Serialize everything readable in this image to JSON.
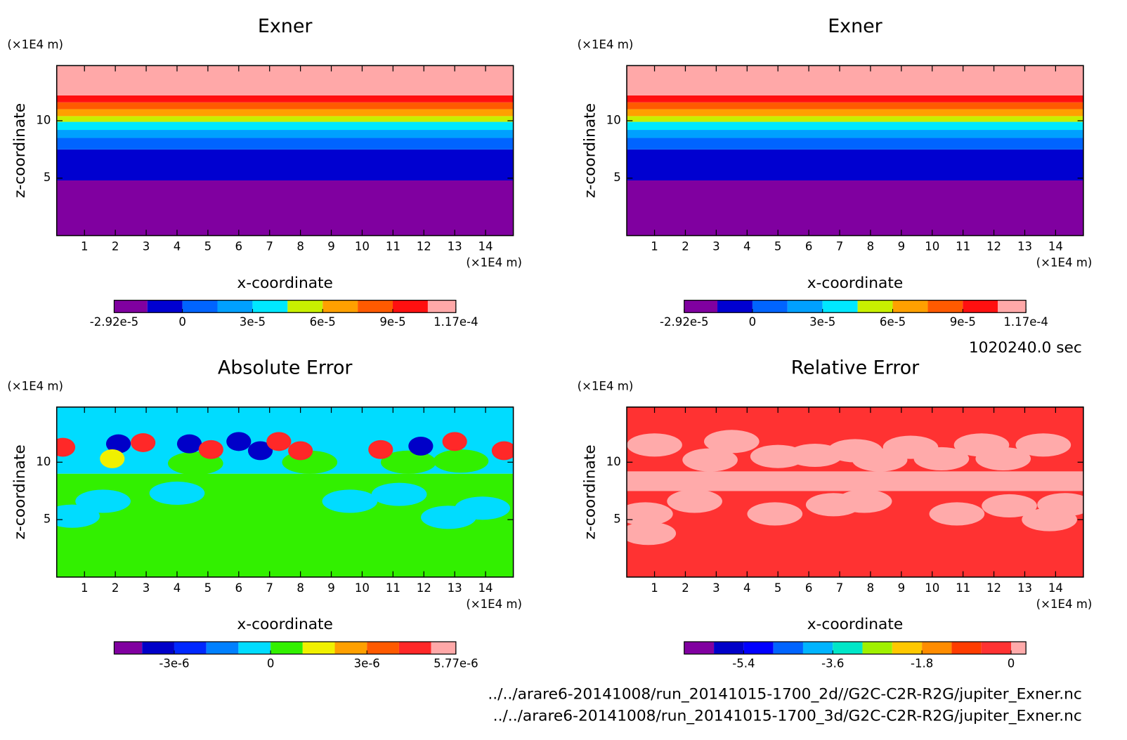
{
  "chart_data": [
    {
      "type": "contour",
      "title": "Exner",
      "xlabel": "x-coordinate",
      "ylabel": "z-coordinate",
      "xunit": "(×1E4 m)",
      "yunit": "(×1E4 m)",
      "xlim": [
        0.1,
        14.9
      ],
      "ylim": [
        0,
        14.8
      ],
      "xticks": [
        1,
        2,
        3,
        4,
        5,
        6,
        7,
        8,
        9,
        10,
        11,
        12,
        13,
        14
      ],
      "yticks": [
        5,
        10
      ],
      "bands": [
        {
          "bottom": 0,
          "color": "#8000a0"
        },
        {
          "bottom": 4.8,
          "color": "#0000d0"
        },
        {
          "bottom": 7.5,
          "color": "#0064ff"
        },
        {
          "bottom": 8.5,
          "color": "#00a0ff"
        },
        {
          "bottom": 9.2,
          "color": "#00e8ff"
        },
        {
          "bottom": 9.9,
          "color": "#c8f000"
        },
        {
          "bottom": 10.4,
          "color": "#ffa000"
        },
        {
          "bottom": 11.0,
          "color": "#ff5a00"
        },
        {
          "bottom": 11.6,
          "color": "#ff1010"
        },
        {
          "bottom": 12.2,
          "color": "#ffa8a8"
        }
      ],
      "colorbar": {
        "levels": [
          -2.92e-05,
          -1.5e-05,
          0,
          1.5e-05,
          3e-05,
          4.5e-05,
          6e-05,
          7.5e-05,
          9e-05,
          0.000105,
          0.000117
        ],
        "colors": [
          "#8000a0",
          "#0000d0",
          "#0064ff",
          "#00a0ff",
          "#00e8ff",
          "#c8f000",
          "#ffa000",
          "#ff5a00",
          "#ff1010",
          "#ffa8a8"
        ],
        "ticks": [
          {
            "value": -2.92e-05,
            "label": "-2.92e-5"
          },
          0,
          {
            "value": 3e-05,
            "label": "3e-5"
          },
          {
            "value": 6e-05,
            "label": "6e-5"
          },
          {
            "value": 9e-05,
            "label": "9e-5"
          },
          {
            "value": 0.000117,
            "label": "1.17e-4"
          }
        ]
      }
    },
    {
      "type": "contour",
      "title": "Exner",
      "xlabel": "x-coordinate",
      "ylabel": "z-coordinate",
      "xunit": "(×1E4 m)",
      "yunit": "(×1E4 m)",
      "xlim": [
        0.1,
        14.9
      ],
      "ylim": [
        0,
        14.8
      ],
      "xticks": [
        1,
        2,
        3,
        4,
        5,
        6,
        7,
        8,
        9,
        10,
        11,
        12,
        13,
        14
      ],
      "yticks": [
        5,
        10
      ],
      "bands": [
        {
          "bottom": 0,
          "color": "#8000a0"
        },
        {
          "bottom": 4.8,
          "color": "#0000d0"
        },
        {
          "bottom": 7.5,
          "color": "#0064ff"
        },
        {
          "bottom": 8.5,
          "color": "#00a0ff"
        },
        {
          "bottom": 9.2,
          "color": "#00e8ff"
        },
        {
          "bottom": 9.9,
          "color": "#c8f000"
        },
        {
          "bottom": 10.4,
          "color": "#ffa000"
        },
        {
          "bottom": 11.0,
          "color": "#ff5a00"
        },
        {
          "bottom": 11.6,
          "color": "#ff1010"
        },
        {
          "bottom": 12.2,
          "color": "#ffa8a8"
        }
      ],
      "colorbar": {
        "levels": [
          -2.92e-05,
          -1.5e-05,
          0,
          1.5e-05,
          3e-05,
          4.5e-05,
          6e-05,
          7.5e-05,
          9e-05,
          0.000105,
          0.000117
        ],
        "colors": [
          "#8000a0",
          "#0000d0",
          "#0064ff",
          "#00a0ff",
          "#00e8ff",
          "#c8f000",
          "#ffa000",
          "#ff5a00",
          "#ff1010",
          "#ffa8a8"
        ],
        "ticks": [
          {
            "value": -2.92e-05,
            "label": "-2.92e-5"
          },
          0,
          {
            "value": 3e-05,
            "label": "3e-5"
          },
          {
            "value": 6e-05,
            "label": "6e-5"
          },
          {
            "value": 9e-05,
            "label": "9e-5"
          },
          {
            "value": 0.000117,
            "label": "1.17e-4"
          }
        ]
      }
    },
    {
      "type": "contour",
      "title": "Absolute Error",
      "xlabel": "x-coordinate",
      "ylabel": "z-coordinate",
      "xunit": "(×1E4 m)",
      "yunit": "(×1E4 m)",
      "xlim": [
        0.1,
        14.9
      ],
      "ylim": [
        0,
        14.8
      ],
      "xticks": [
        1,
        2,
        3,
        4,
        5,
        6,
        7,
        8,
        9,
        10,
        11,
        12,
        13,
        14
      ],
      "yticks": [
        5,
        10
      ],
      "bands": [
        {
          "bottom": 0,
          "color": "#32f000"
        },
        {
          "bottom": 9.0,
          "color": "#00dcff"
        }
      ],
      "blobs": [
        {
          "x": 0.6,
          "z": 5.3,
          "color": "#00dcff"
        },
        {
          "x": 1.6,
          "z": 6.6,
          "color": "#00dcff"
        },
        {
          "x": 13.9,
          "z": 6.0,
          "color": "#00dcff"
        },
        {
          "x": 12.8,
          "z": 5.2,
          "color": "#00dcff"
        },
        {
          "x": 4.0,
          "z": 7.3,
          "color": "#00dcff"
        },
        {
          "x": 9.6,
          "z": 6.6,
          "color": "#00dcff"
        },
        {
          "x": 11.2,
          "z": 7.2,
          "color": "#00dcff"
        },
        {
          "x": 4.6,
          "z": 9.9,
          "color": "#32f000"
        },
        {
          "x": 8.3,
          "z": 10.0,
          "color": "#32f000"
        },
        {
          "x": 11.5,
          "z": 10.0,
          "color": "#32f000"
        },
        {
          "x": 13.2,
          "z": 10.1,
          "color": "#32f000"
        },
        {
          "x": 0.3,
          "z": 11.3,
          "color": "#ff2828"
        },
        {
          "x": 2.1,
          "z": 11.6,
          "color": "#0000c8"
        },
        {
          "x": 2.9,
          "z": 11.7,
          "color": "#ff2828"
        },
        {
          "x": 1.9,
          "z": 10.3,
          "color": "#f0f000"
        },
        {
          "x": 4.4,
          "z": 11.6,
          "color": "#0000c8"
        },
        {
          "x": 5.1,
          "z": 11.1,
          "color": "#ff2828"
        },
        {
          "x": 6.0,
          "z": 11.8,
          "color": "#0000c8"
        },
        {
          "x": 6.7,
          "z": 11.0,
          "color": "#0000c8"
        },
        {
          "x": 7.3,
          "z": 11.8,
          "color": "#ff2828"
        },
        {
          "x": 8.0,
          "z": 11.0,
          "color": "#ff2828"
        },
        {
          "x": 10.6,
          "z": 11.1,
          "color": "#ff2828"
        },
        {
          "x": 11.9,
          "z": 11.4,
          "color": "#0000c8"
        },
        {
          "x": 13.0,
          "z": 11.8,
          "color": "#ff2828"
        },
        {
          "x": 14.6,
          "z": 11.0,
          "color": "#ff2828"
        }
      ],
      "colorbar": {
        "levels": [
          -4.87e-06,
          -4e-06,
          -3e-06,
          -2e-06,
          -1e-06,
          0,
          1e-06,
          2e-06,
          3e-06,
          4e-06,
          5e-06,
          5.77e-06
        ],
        "colors": [
          "#8000a0",
          "#0000c8",
          "#0028ff",
          "#0080ff",
          "#00dcff",
          "#32f000",
          "#f0f000",
          "#ffa000",
          "#ff5a00",
          "#ff2828",
          "#ffa8a8"
        ],
        "ticks": [
          {
            "value": -3e-06,
            "label": "-3e-6"
          },
          0,
          {
            "value": 3e-06,
            "label": "3e-6"
          },
          {
            "value": 5.77e-06,
            "label": "5.77e-6"
          }
        ]
      }
    },
    {
      "type": "contour",
      "title": "Relative Error",
      "xlabel": "x-coordinate",
      "ylabel": "z-coordinate",
      "xunit": "(×1E4 m)",
      "yunit": "(×1E4 m)",
      "xlim": [
        0.1,
        14.9
      ],
      "ylim": [
        0,
        14.8
      ],
      "xticks": [
        1,
        2,
        3,
        4,
        5,
        6,
        7,
        8,
        9,
        10,
        11,
        12,
        13,
        14
      ],
      "yticks": [
        5,
        10
      ],
      "bands": [
        {
          "bottom": 0,
          "color": "#ff3232"
        },
        {
          "bottom": 7.5,
          "color": "#ffaaaa"
        },
        {
          "bottom": 9.2,
          "color": "#ff3232"
        }
      ],
      "blobs": [
        {
          "x": 1.0,
          "z": 11.5,
          "color": "#ffaaaa"
        },
        {
          "x": 2.8,
          "z": 10.2,
          "color": "#ffaaaa"
        },
        {
          "x": 3.5,
          "z": 11.8,
          "color": "#ffaaaa"
        },
        {
          "x": 5.0,
          "z": 10.5,
          "color": "#ffaaaa"
        },
        {
          "x": 6.2,
          "z": 10.6,
          "color": "#ffaaaa"
        },
        {
          "x": 7.5,
          "z": 11.0,
          "color": "#ffaaaa"
        },
        {
          "x": 8.3,
          "z": 10.2,
          "color": "#ffaaaa"
        },
        {
          "x": 9.3,
          "z": 11.3,
          "color": "#ffaaaa"
        },
        {
          "x": 10.3,
          "z": 10.3,
          "color": "#ffaaaa"
        },
        {
          "x": 11.6,
          "z": 11.5,
          "color": "#ffaaaa"
        },
        {
          "x": 12.3,
          "z": 10.3,
          "color": "#ffaaaa"
        },
        {
          "x": 13.6,
          "z": 11.5,
          "color": "#ffaaaa"
        },
        {
          "x": 0.7,
          "z": 5.5,
          "color": "#ffaaaa"
        },
        {
          "x": 2.3,
          "z": 6.6,
          "color": "#ffaaaa"
        },
        {
          "x": 4.9,
          "z": 5.5,
          "color": "#ffaaaa"
        },
        {
          "x": 6.8,
          "z": 6.3,
          "color": "#ffaaaa"
        },
        {
          "x": 7.8,
          "z": 6.6,
          "color": "#ffaaaa"
        },
        {
          "x": 10.8,
          "z": 5.5,
          "color": "#ffaaaa"
        },
        {
          "x": 12.5,
          "z": 6.2,
          "color": "#ffaaaa"
        },
        {
          "x": 13.8,
          "z": 5.0,
          "color": "#ffaaaa"
        },
        {
          "x": 14.3,
          "z": 6.3,
          "color": "#ffaaaa"
        },
        {
          "x": 0.8,
          "z": 3.8,
          "color": "#ffaaaa"
        }
      ],
      "colorbar": {
        "levels": [
          -6.6,
          -6.0,
          -5.4,
          -4.8,
          -4.2,
          -3.6,
          -3.0,
          -2.4,
          -1.8,
          -1.2,
          -0.6,
          0,
          0.3
        ],
        "colors": [
          "#8000a0",
          "#0000c8",
          "#0000ff",
          "#0064ff",
          "#00b4ff",
          "#00e6c8",
          "#a0f000",
          "#ffc800",
          "#ff8c00",
          "#ff3c00",
          "#ff3232",
          "#ffaaaa"
        ],
        "ticks": [
          -5.4,
          -3.6,
          -1.8,
          0
        ]
      }
    }
  ],
  "time_label": "1020240.0 sec",
  "files": [
    "../../arare6-20141008/run_20141015-1700_2d//G2C-C2R-R2G/jupiter_Exner.nc",
    "../../arare6-20141008/run_20141015-1700_3d/G2C-C2R-R2G/jupiter_Exner.nc"
  ]
}
